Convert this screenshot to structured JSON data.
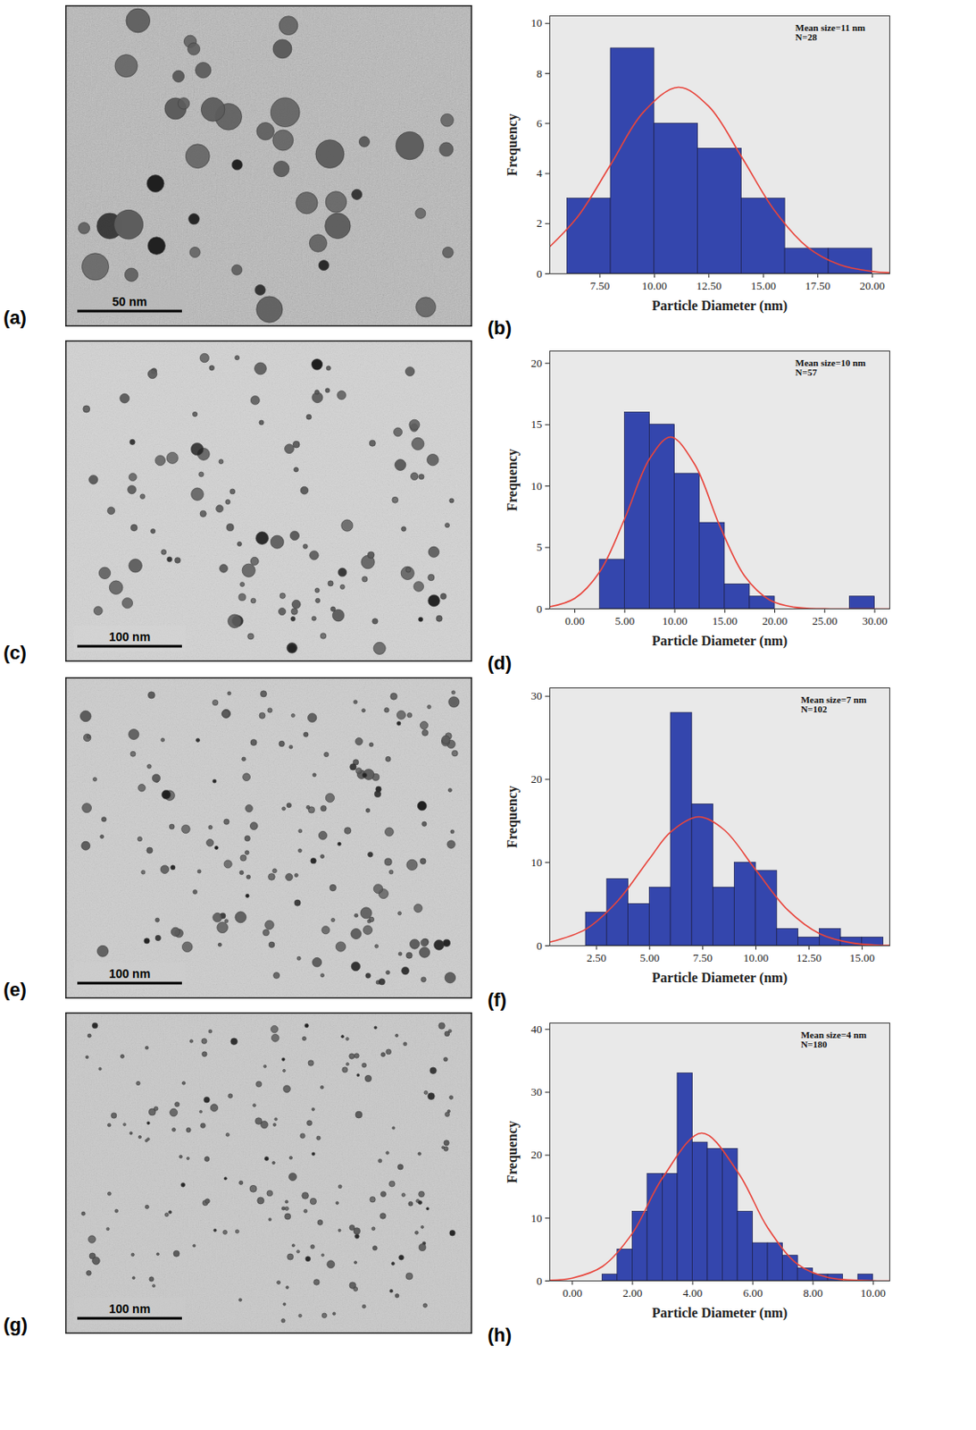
{
  "chart_data": [
    {
      "type": "histogram",
      "panel_label": "(b)",
      "bins": [
        6,
        8,
        10,
        12,
        14,
        16,
        18,
        20
      ],
      "values": [
        3,
        9,
        6,
        5,
        3,
        1,
        1
      ],
      "color": "#3446ad",
      "xlabel": "Particle Diameter (nm)",
      "ylabel": "Frequency",
      "xlim": [
        5.2,
        20.8
      ],
      "xticks": [
        {
          "value": 7.5,
          "label": "7.50"
        },
        {
          "value": 10,
          "label": "10.00"
        },
        {
          "value": 12.5,
          "label": "12.50"
        },
        {
          "value": 15,
          "label": "15.00"
        },
        {
          "value": 17.5,
          "label": "17.50"
        },
        {
          "value": 20,
          "label": "20.00"
        }
      ],
      "ylim": [
        0,
        10.3
      ],
      "yticks": [
        0,
        2,
        4,
        6,
        8,
        10
      ],
      "annotations": [
        "Mean size=11 nm",
        "N=28"
      ],
      "fit_curve": {
        "type": "line",
        "color": "#e8453c",
        "x": [
          5.2,
          6.5,
          8,
          9.5,
          11.1,
          12.5,
          14,
          15.5,
          17,
          18.5,
          20,
          20.8
        ],
        "values": [
          1.08,
          2.3,
          4.37,
          6.46,
          7.45,
          6.68,
          4.67,
          2.54,
          1.08,
          0.36,
          0.09,
          0.04
        ]
      }
    },
    {
      "type": "histogram",
      "panel_label": "(d)",
      "bins": [
        2.5,
        5,
        7.5,
        10,
        12.5,
        15,
        17.5,
        20,
        22.5,
        25,
        27.5,
        30
      ],
      "values": [
        4,
        16,
        15,
        11,
        7,
        2,
        1,
        0,
        0,
        0,
        1
      ],
      "color": "#3446ad",
      "xlabel": "Particle Diameter (nm)",
      "ylabel": "Frequency",
      "xlim": [
        -2.5,
        31.5
      ],
      "xticks": [
        {
          "value": 0,
          "label": "0.00"
        },
        {
          "value": 5,
          "label": "5.00"
        },
        {
          "value": 10,
          "label": "10.00"
        },
        {
          "value": 15,
          "label": "15.00"
        },
        {
          "value": 20,
          "label": "20.00"
        },
        {
          "value": 25,
          "label": "25.00"
        },
        {
          "value": 30,
          "label": "30.00"
        }
      ],
      "ylim": [
        0,
        21
      ],
      "yticks": [
        0,
        5,
        10,
        15,
        20
      ],
      "annotations": [
        "Mean size=10 nm",
        "N=57"
      ],
      "fit_curve": {
        "type": "line",
        "color": "#e8453c",
        "x": [
          -2.5,
          0,
          2.5,
          5,
          7.5,
          9.6,
          12,
          14.5,
          17,
          19.5,
          22,
          25,
          31.5
        ],
        "values": [
          0.17,
          0.86,
          3.03,
          7.37,
          12.25,
          14,
          11.76,
          6.76,
          2.66,
          0.72,
          0.13,
          0.01,
          0
        ]
      }
    },
    {
      "type": "histogram",
      "panel_label": "(f)",
      "bins": [
        2,
        3,
        4,
        5,
        6,
        7,
        8,
        9,
        10,
        11,
        12,
        13,
        14,
        15,
        16
      ],
      "values": [
        4,
        8,
        5,
        7,
        28,
        17,
        7,
        10,
        9,
        2,
        1,
        2,
        1,
        1
      ],
      "color": "#3446ad",
      "xlabel": "Particle Diameter (nm)",
      "ylabel": "Frequency",
      "xlim": [
        0.3,
        16.3
      ],
      "xticks": [
        {
          "value": 2.5,
          "label": "2.50"
        },
        {
          "value": 5,
          "label": "5.00"
        },
        {
          "value": 7.5,
          "label": "7.50"
        },
        {
          "value": 10,
          "label": "10.00"
        },
        {
          "value": 12.5,
          "label": "12.50"
        },
        {
          "value": 15,
          "label": "15.00"
        }
      ],
      "ylim": [
        0,
        31
      ],
      "yticks": [
        0,
        10,
        20,
        30
      ],
      "annotations": [
        "Mean size=7 nm",
        "N=102"
      ],
      "fit_curve": {
        "type": "line",
        "color": "#e8453c",
        "x": [
          0.3,
          2,
          3.5,
          5,
          6,
          7.3,
          8.5,
          10,
          11.5,
          13,
          14.5,
          16.3
        ],
        "values": [
          0.43,
          2.0,
          5.4,
          10.5,
          13.7,
          15.5,
          13.95,
          9.1,
          4.3,
          1.45,
          0.35,
          0.04
        ]
      }
    },
    {
      "type": "histogram",
      "panel_label": "(h)",
      "bins": [
        1,
        1.5,
        2,
        2.5,
        3,
        3.5,
        4,
        4.5,
        5,
        5.5,
        6,
        6.5,
        7,
        7.5,
        8,
        8.5,
        9,
        9.5,
        10
      ],
      "values": [
        1,
        5,
        11,
        17,
        17,
        33,
        22,
        21,
        21,
        11,
        6,
        6,
        4,
        2,
        1,
        1,
        0,
        1
      ],
      "color": "#3446ad",
      "xlabel": "Particle Diameter (nm)",
      "ylabel": "Frequency",
      "xlim": [
        -0.75,
        10.55
      ],
      "xticks": [
        {
          "value": 0,
          "label": "0.00"
        },
        {
          "value": 2,
          "label": "2.00"
        },
        {
          "value": 4,
          "label": "4.00"
        },
        {
          "value": 6,
          "label": "6.00"
        },
        {
          "value": 8,
          "label": "8.00"
        },
        {
          "value": 10,
          "label": "10.00"
        }
      ],
      "ylim": [
        0,
        41
      ],
      "yticks": [
        0,
        10,
        20,
        30,
        40
      ],
      "annotations": [
        "Mean size=4 nm",
        "N=180"
      ],
      "fit_curve": {
        "type": "line",
        "color": "#e8453c",
        "x": [
          -0.75,
          0,
          1,
          2,
          3,
          4.3,
          5.5,
          6.5,
          7.5,
          8.5,
          10,
          10.55
        ],
        "values": [
          0.1,
          0.45,
          2.29,
          7.6,
          16.4,
          23.5,
          17.3,
          8.4,
          2.6,
          0.54,
          0.02,
          0.01
        ]
      }
    }
  ],
  "micrographs": [
    {
      "panel_label": "(a)",
      "scale_bar": "50 nm"
    },
    {
      "panel_label": "(c)",
      "scale_bar": "100 nm"
    },
    {
      "panel_label": "(e)",
      "scale_bar": "100 nm"
    },
    {
      "panel_label": "(g)",
      "scale_bar": "100 nm"
    }
  ]
}
